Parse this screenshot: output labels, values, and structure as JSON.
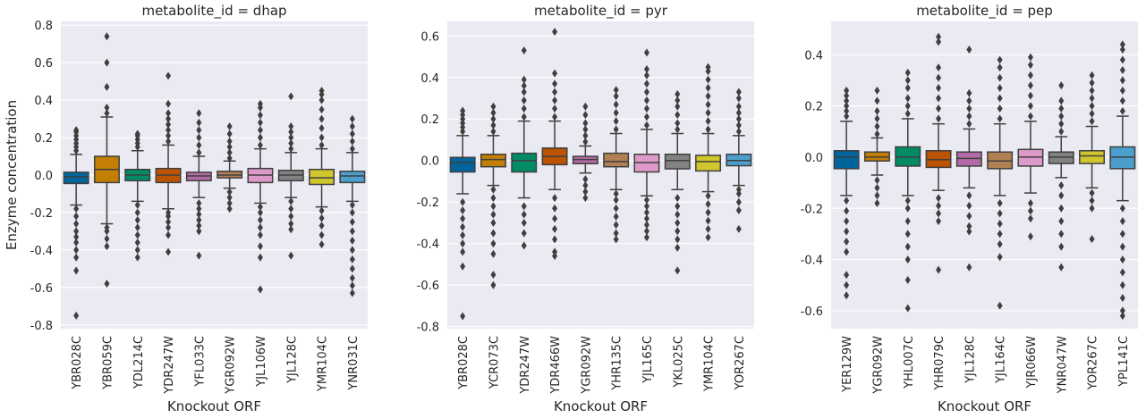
{
  "figure": {
    "ylabel": "Enzyme concentration",
    "xlabel": "Knockout ORF"
  },
  "palette": [
    "#0173b2",
    "#de8f05",
    "#029e73",
    "#d55e00",
    "#cc78bc",
    "#ca9161",
    "#fbafe4",
    "#949494",
    "#ece133",
    "#56b4e9"
  ],
  "chart_data": [
    {
      "type": "box",
      "title": "metabolite_id = dhap",
      "xlabel": "Knockout ORF",
      "ylabel": "Enzyme concentration",
      "ylim": [
        -0.82,
        0.82
      ],
      "yticks": [
        -0.8,
        -0.6,
        -0.4,
        -0.2,
        0.0,
        0.2,
        0.4,
        0.6,
        0.8
      ],
      "categories": [
        "YBR028C",
        "YBR059C",
        "YDL214C",
        "YDR247W",
        "YFL033C",
        "YGR092W",
        "YJL106W",
        "YJL128C",
        "YMR104C",
        "YNR031C"
      ],
      "colors": [
        "#0173b2",
        "#de8f05",
        "#029e73",
        "#d55e00",
        "#cc78bc",
        "#ca9161",
        "#fbafe4",
        "#949494",
        "#ece133",
        "#56b4e9"
      ],
      "boxes": [
        {
          "q1": -0.045,
          "median": -0.01,
          "q3": 0.015,
          "whislo": -0.16,
          "whishi": 0.11,
          "fliers": [
            -0.75,
            -0.51,
            -0.44,
            -0.4,
            -0.36,
            -0.33,
            -0.3,
            -0.26,
            -0.22,
            -0.18,
            0.13,
            0.15,
            0.17,
            0.19,
            0.21,
            0.23,
            0.24
          ]
        },
        {
          "q1": -0.04,
          "median": 0.03,
          "q3": 0.1,
          "whislo": -0.26,
          "whishi": 0.31,
          "fliers": [
            -0.58,
            -0.38,
            -0.34,
            -0.3,
            -0.28,
            0.33,
            0.36,
            0.47,
            0.6,
            0.74
          ]
        },
        {
          "q1": -0.03,
          "median": 0.0,
          "q3": 0.03,
          "whislo": -0.14,
          "whishi": 0.13,
          "fliers": [
            -0.44,
            -0.4,
            -0.36,
            -0.32,
            -0.28,
            -0.24,
            -0.2,
            -0.16,
            0.15,
            0.17,
            0.19,
            0.21,
            0.22
          ]
        },
        {
          "q1": -0.04,
          "median": 0.0,
          "q3": 0.035,
          "whislo": -0.18,
          "whishi": 0.16,
          "fliers": [
            -0.41,
            -0.32,
            -0.28,
            -0.25,
            -0.22,
            -0.2,
            0.18,
            0.21,
            0.24,
            0.27,
            0.3,
            0.33,
            0.38,
            0.53
          ]
        },
        {
          "q1": -0.03,
          "median": -0.005,
          "q3": 0.015,
          "whislo": -0.12,
          "whishi": 0.1,
          "fliers": [
            -0.43,
            -0.3,
            -0.27,
            -0.24,
            -0.21,
            -0.18,
            -0.15,
            0.12,
            0.16,
            0.2,
            0.24,
            0.28,
            0.33
          ]
        },
        {
          "q1": -0.015,
          "median": 0.0,
          "q3": 0.02,
          "whislo": -0.07,
          "whishi": 0.075,
          "fliers": [
            -0.18,
            -0.15,
            -0.12,
            -0.09,
            0.09,
            0.12,
            0.15,
            0.18,
            0.22,
            0.26
          ]
        },
        {
          "q1": -0.04,
          "median": 0.0,
          "q3": 0.035,
          "whislo": -0.15,
          "whishi": 0.14,
          "fliers": [
            -0.61,
            -0.44,
            -0.38,
            -0.32,
            -0.28,
            -0.24,
            -0.2,
            -0.17,
            0.16,
            0.2,
            0.24,
            0.28,
            0.32,
            0.36,
            0.38
          ]
        },
        {
          "q1": -0.03,
          "median": 0.0,
          "q3": 0.025,
          "whislo": -0.12,
          "whishi": 0.12,
          "fliers": [
            -0.43,
            -0.29,
            -0.26,
            -0.22,
            -0.18,
            -0.14,
            0.14,
            0.17,
            0.2,
            0.23,
            0.26,
            0.42
          ]
        },
        {
          "q1": -0.05,
          "median": -0.015,
          "q3": 0.03,
          "whislo": -0.17,
          "whishi": 0.14,
          "fliers": [
            -0.37,
            -0.32,
            -0.27,
            -0.23,
            -0.19,
            0.16,
            0.2,
            0.25,
            0.3,
            0.35,
            0.4,
            0.43,
            0.45
          ]
        },
        {
          "q1": -0.04,
          "median": -0.005,
          "q3": 0.02,
          "whislo": -0.14,
          "whishi": 0.12,
          "fliers": [
            -0.63,
            -0.59,
            -0.55,
            -0.5,
            -0.45,
            -0.4,
            -0.35,
            -0.3,
            -0.25,
            -0.2,
            -0.16,
            0.14,
            0.18,
            0.22,
            0.26,
            0.3
          ]
        }
      ]
    },
    {
      "type": "box",
      "title": "metabolite_id = pyr",
      "xlabel": "Knockout ORF",
      "ylabel": "",
      "ylim": [
        -0.81,
        0.67
      ],
      "yticks": [
        -0.8,
        -0.6,
        -0.4,
        -0.2,
        0.0,
        0.2,
        0.4,
        0.6
      ],
      "categories": [
        "YBR028C",
        "YCR073C",
        "YDR247W",
        "YDR466W",
        "YGR092W",
        "YHR135C",
        "YJL165C",
        "YKL025C",
        "YMR104C",
        "YOR267C"
      ],
      "colors": [
        "#0173b2",
        "#de8f05",
        "#029e73",
        "#d55e00",
        "#cc78bc",
        "#ca9161",
        "#fbafe4",
        "#949494",
        "#ece133",
        "#56b4e9"
      ],
      "boxes": [
        {
          "q1": -0.055,
          "median": -0.01,
          "q3": 0.015,
          "whislo": -0.16,
          "whishi": 0.12,
          "fliers": [
            -0.75,
            -0.51,
            -0.44,
            -0.4,
            -0.36,
            -0.32,
            -0.28,
            -0.24,
            -0.2,
            0.14,
            0.16,
            0.18,
            0.2,
            0.22,
            0.24
          ]
        },
        {
          "q1": -0.03,
          "median": 0.005,
          "q3": 0.03,
          "whislo": -0.12,
          "whishi": 0.12,
          "fliers": [
            -0.6,
            -0.55,
            -0.45,
            -0.4,
            -0.35,
            -0.3,
            -0.26,
            -0.22,
            -0.18,
            -0.14,
            0.14,
            0.17,
            0.2,
            0.23,
            0.26
          ]
        },
        {
          "q1": -0.055,
          "median": 0.0,
          "q3": 0.035,
          "whislo": -0.18,
          "whishi": 0.19,
          "fliers": [
            -0.41,
            -0.35,
            -0.3,
            -0.26,
            -0.22,
            0.21,
            0.25,
            0.29,
            0.33,
            0.36,
            0.39,
            0.53
          ]
        },
        {
          "q1": -0.02,
          "median": 0.02,
          "q3": 0.06,
          "whislo": -0.14,
          "whishi": 0.19,
          "fliers": [
            -0.46,
            -0.44,
            -0.38,
            -0.33,
            -0.28,
            -0.23,
            -0.18,
            0.21,
            0.25,
            0.29,
            0.33,
            0.37,
            0.42,
            0.62
          ]
        },
        {
          "q1": -0.015,
          "median": 0.005,
          "q3": 0.02,
          "whislo": -0.06,
          "whishi": 0.07,
          "fliers": [
            -0.18,
            -0.15,
            -0.12,
            -0.09,
            0.09,
            0.12,
            0.15,
            0.18,
            0.22,
            0.26
          ]
        },
        {
          "q1": -0.03,
          "median": -0.005,
          "q3": 0.035,
          "whislo": -0.14,
          "whishi": 0.13,
          "fliers": [
            -0.38,
            -0.35,
            -0.31,
            -0.27,
            -0.23,
            -0.19,
            -0.16,
            0.15,
            0.19,
            0.23,
            0.27,
            0.31,
            0.34
          ]
        },
        {
          "q1": -0.055,
          "median": -0.01,
          "q3": 0.03,
          "whislo": -0.17,
          "whishi": 0.15,
          "fliers": [
            -0.37,
            -0.34,
            -0.31,
            -0.28,
            -0.25,
            -0.22,
            -0.19,
            0.17,
            0.21,
            0.25,
            0.29,
            0.33,
            0.37,
            0.41,
            0.44,
            0.52
          ]
        },
        {
          "q1": -0.04,
          "median": 0.0,
          "q3": 0.03,
          "whislo": -0.14,
          "whishi": 0.13,
          "fliers": [
            -0.53,
            -0.42,
            -0.38,
            -0.34,
            -0.3,
            -0.26,
            -0.22,
            -0.18,
            0.15,
            0.18,
            0.22,
            0.26,
            0.29,
            0.32
          ]
        },
        {
          "q1": -0.05,
          "median": -0.005,
          "q3": 0.025,
          "whislo": -0.15,
          "whishi": 0.13,
          "fliers": [
            -0.37,
            -0.33,
            -0.29,
            -0.25,
            -0.21,
            -0.17,
            0.15,
            0.19,
            0.23,
            0.27,
            0.31,
            0.35,
            0.39,
            0.43,
            0.45
          ]
        },
        {
          "q1": -0.025,
          "median": 0.0,
          "q3": 0.03,
          "whislo": -0.12,
          "whishi": 0.12,
          "fliers": [
            -0.33,
            -0.24,
            -0.2,
            -0.16,
            -0.14,
            0.14,
            0.17,
            0.2,
            0.23,
            0.26,
            0.3,
            0.33
          ]
        }
      ]
    },
    {
      "type": "box",
      "title": "metabolite_id = pep",
      "xlabel": "Knockout ORF",
      "ylabel": "",
      "ylim": [
        -0.67,
        0.53
      ],
      "yticks": [
        -0.6,
        -0.4,
        -0.2,
        0.0,
        0.2,
        0.4
      ],
      "categories": [
        "YER129W",
        "YGR092W",
        "YHL007C",
        "YHR079C",
        "YJL128C",
        "YJL164C",
        "YJR066W",
        "YNR047W",
        "YOR267C",
        "YPL141C"
      ],
      "colors": [
        "#0173b2",
        "#de8f05",
        "#029e73",
        "#d55e00",
        "#cc78bc",
        "#ca9161",
        "#fbafe4",
        "#949494",
        "#ece133",
        "#56b4e9"
      ],
      "boxes": [
        {
          "q1": -0.045,
          "median": 0.0,
          "q3": 0.025,
          "whislo": -0.15,
          "whishi": 0.14,
          "fliers": [
            -0.54,
            -0.5,
            -0.46,
            -0.37,
            -0.33,
            -0.29,
            -0.25,
            -0.21,
            -0.17,
            0.16,
            0.18,
            0.2,
            0.22,
            0.24,
            0.26
          ]
        },
        {
          "q1": -0.015,
          "median": 0.0,
          "q3": 0.02,
          "whislo": -0.07,
          "whishi": 0.075,
          "fliers": [
            -0.18,
            -0.15,
            -0.12,
            -0.09,
            0.09,
            0.12,
            0.15,
            0.18,
            0.22,
            0.26
          ]
        },
        {
          "q1": -0.035,
          "median": 0.0,
          "q3": 0.04,
          "whislo": -0.15,
          "whishi": 0.15,
          "fliers": [
            -0.59,
            -0.48,
            -0.4,
            -0.35,
            -0.3,
            -0.25,
            -0.2,
            -0.17,
            0.17,
            0.2,
            0.23,
            0.27,
            0.3,
            0.33
          ]
        },
        {
          "q1": -0.04,
          "median": -0.01,
          "q3": 0.025,
          "whislo": -0.13,
          "whishi": 0.13,
          "fliers": [
            -0.44,
            -0.25,
            -0.22,
            -0.19,
            -0.16,
            0.15,
            0.19,
            0.23,
            0.27,
            0.31,
            0.35,
            0.45,
            0.47
          ]
        },
        {
          "q1": -0.035,
          "median": -0.005,
          "q3": 0.02,
          "whislo": -0.12,
          "whishi": 0.11,
          "fliers": [
            -0.43,
            -0.29,
            -0.27,
            -0.23,
            -0.19,
            -0.15,
            0.13,
            0.16,
            0.19,
            0.22,
            0.25,
            0.42
          ]
        },
        {
          "q1": -0.045,
          "median": -0.015,
          "q3": 0.02,
          "whislo": -0.15,
          "whishi": 0.13,
          "fliers": [
            -0.58,
            -0.39,
            -0.34,
            -0.3,
            -0.26,
            -0.22,
            -0.18,
            0.15,
            0.19,
            0.23,
            0.27,
            0.31,
            0.35,
            0.38
          ]
        },
        {
          "q1": -0.035,
          "median": 0.0,
          "q3": 0.03,
          "whislo": -0.14,
          "whishi": 0.14,
          "fliers": [
            -0.31,
            -0.24,
            -0.21,
            -0.18,
            0.16,
            0.2,
            0.24,
            0.28,
            0.32,
            0.36,
            0.39
          ]
        },
        {
          "q1": -0.025,
          "median": 0.0,
          "q3": 0.02,
          "whislo": -0.08,
          "whishi": 0.08,
          "fliers": [
            -0.43,
            -0.35,
            -0.3,
            -0.25,
            -0.2,
            -0.15,
            -0.11,
            0.1,
            0.13,
            0.16,
            0.19,
            0.22,
            0.28
          ]
        },
        {
          "q1": -0.025,
          "median": 0.005,
          "q3": 0.025,
          "whislo": -0.12,
          "whishi": 0.12,
          "fliers": [
            -0.32,
            -0.2,
            -0.17,
            -0.14,
            0.14,
            0.17,
            0.2,
            0.23,
            0.26,
            0.29,
            0.32
          ]
        },
        {
          "q1": -0.045,
          "median": 0.0,
          "q3": 0.04,
          "whislo": -0.17,
          "whishi": 0.16,
          "fliers": [
            -0.62,
            -0.6,
            -0.55,
            -0.5,
            -0.45,
            -0.4,
            -0.35,
            -0.3,
            -0.25,
            -0.2,
            0.18,
            0.22,
            0.26,
            0.3,
            0.34,
            0.38,
            0.42,
            0.44
          ]
        }
      ]
    }
  ]
}
